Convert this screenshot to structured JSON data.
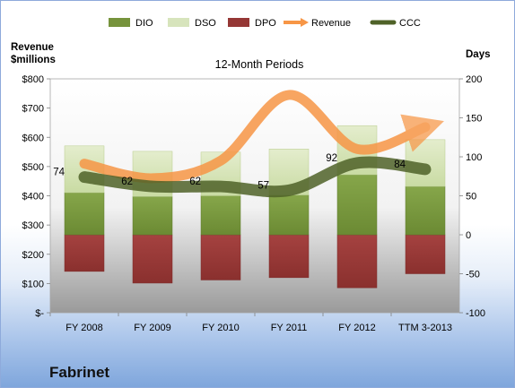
{
  "company": "Fabrinet",
  "chart_data": {
    "type": "bar",
    "subtitle": "12-Month Periods",
    "left_axis": {
      "title_line1": "Revenue",
      "title_line2": "$millions",
      "min": 0,
      "max": 800,
      "step": 100,
      "ticks": [
        "$-",
        "$100",
        "$200",
        "$300",
        "$400",
        "$500",
        "$600",
        "$700",
        "$800"
      ]
    },
    "right_axis": {
      "title": "Days",
      "min": -100,
      "max": 200,
      "step": 50,
      "ticks": [
        "-100",
        "-50",
        "0",
        "50",
        "100",
        "150",
        "200"
      ]
    },
    "categories": [
      "FY 2008",
      "FY 2009",
      "FY 2010",
      "FY 2011",
      "FY 2012",
      "TTM 3-2013"
    ],
    "series": [
      {
        "name": "DIO",
        "axis": "right",
        "color": "#76933c",
        "values": [
          54,
          49,
          50,
          51,
          77,
          62
        ]
      },
      {
        "name": "DSO",
        "axis": "right",
        "color": "#d7e4bc",
        "values": [
          60,
          58,
          56,
          59,
          63,
          60
        ]
      },
      {
        "name": "DPO",
        "axis": "right",
        "color": "#953735",
        "values": [
          -47,
          -62,
          -58,
          -55,
          -68,
          -50
        ]
      },
      {
        "name": "Revenue",
        "axis": "left",
        "color": "#f79646",
        "values": [
          510,
          460,
          520,
          745,
          560,
          635
        ]
      },
      {
        "name": "CCC",
        "axis": "right",
        "color": "#4f6228",
        "values": [
          74,
          62,
          62,
          57,
          92,
          84
        ]
      }
    ],
    "data_labels": [
      "74",
      "62",
      "62",
      "57",
      "92",
      "84"
    ],
    "grid": false,
    "legend": "top"
  }
}
